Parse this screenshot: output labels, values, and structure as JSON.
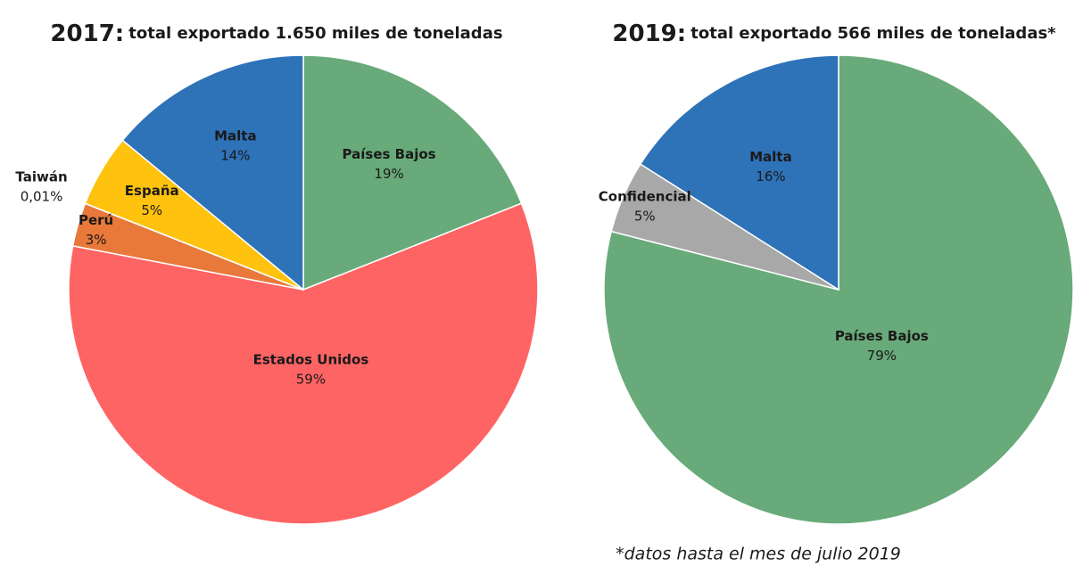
{
  "chart_data": [
    {
      "type": "pie",
      "title": "2017:",
      "subtitle": "total exportado 1.650 miles de toneladas",
      "categories": [
        "Países Bajos",
        "Estados Unidos",
        "Perú",
        "Taiwán",
        "España",
        "Malta"
      ],
      "values": [
        19,
        59,
        3,
        0.01,
        5,
        14
      ],
      "value_labels": [
        "19%",
        "59%",
        "3%",
        "0,01%",
        "5%",
        "14%"
      ],
      "colors": [
        "#68aa79",
        "#ff6464",
        "#e8793a",
        "#b8cce4",
        "#ffc20e",
        "#2e72b8"
      ]
    },
    {
      "type": "pie",
      "title": "2019:",
      "subtitle": "total exportado 566 miles de toneladas*",
      "categories": [
        "Países Bajos",
        "Confidencial",
        "Malta"
      ],
      "values": [
        79,
        5,
        16
      ],
      "value_labels": [
        "79%",
        "5%",
        "16%"
      ],
      "colors": [
        "#68aa79",
        "#a8a8a8",
        "#2e72b8"
      ],
      "note": "*datos hasta el mes de julio 2019"
    }
  ]
}
